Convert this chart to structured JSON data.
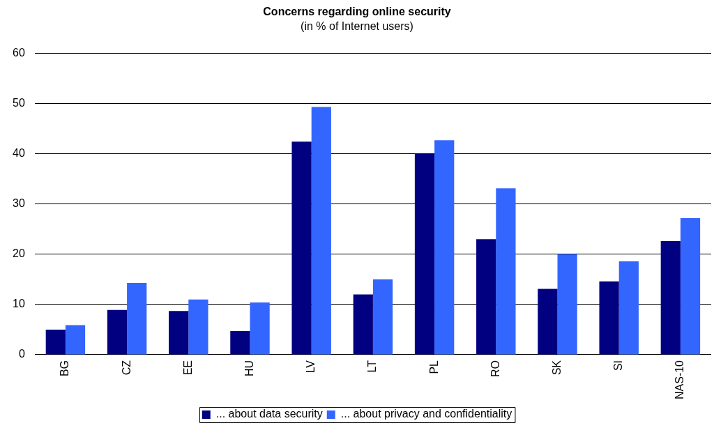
{
  "chart_data": {
    "type": "bar",
    "title": "Concerns regarding online security",
    "subtitle": "(in % of Internet users)",
    "categories": [
      "BG",
      "CZ",
      "EE",
      "HU",
      "LV",
      "LT",
      "PL",
      "RO",
      "SK",
      "SI",
      "NAS-10"
    ],
    "series": [
      {
        "name": "... about data security",
        "color": "#000080",
        "values": [
          5.0,
          8.9,
          8.7,
          4.7,
          42.4,
          12.0,
          40.0,
          23.0,
          13.1,
          14.6,
          22.6
        ]
      },
      {
        "name": "... about privacy and confidentiality",
        "color": "#3366ff",
        "values": [
          5.9,
          14.3,
          11.0,
          10.4,
          49.3,
          15.0,
          42.7,
          33.1,
          20.0,
          18.6,
          27.2
        ]
      }
    ],
    "ylim": [
      0,
      60
    ],
    "yticks": [
      0,
      10,
      20,
      30,
      40,
      50,
      60
    ],
    "grid": "y",
    "legend": "bottom"
  }
}
